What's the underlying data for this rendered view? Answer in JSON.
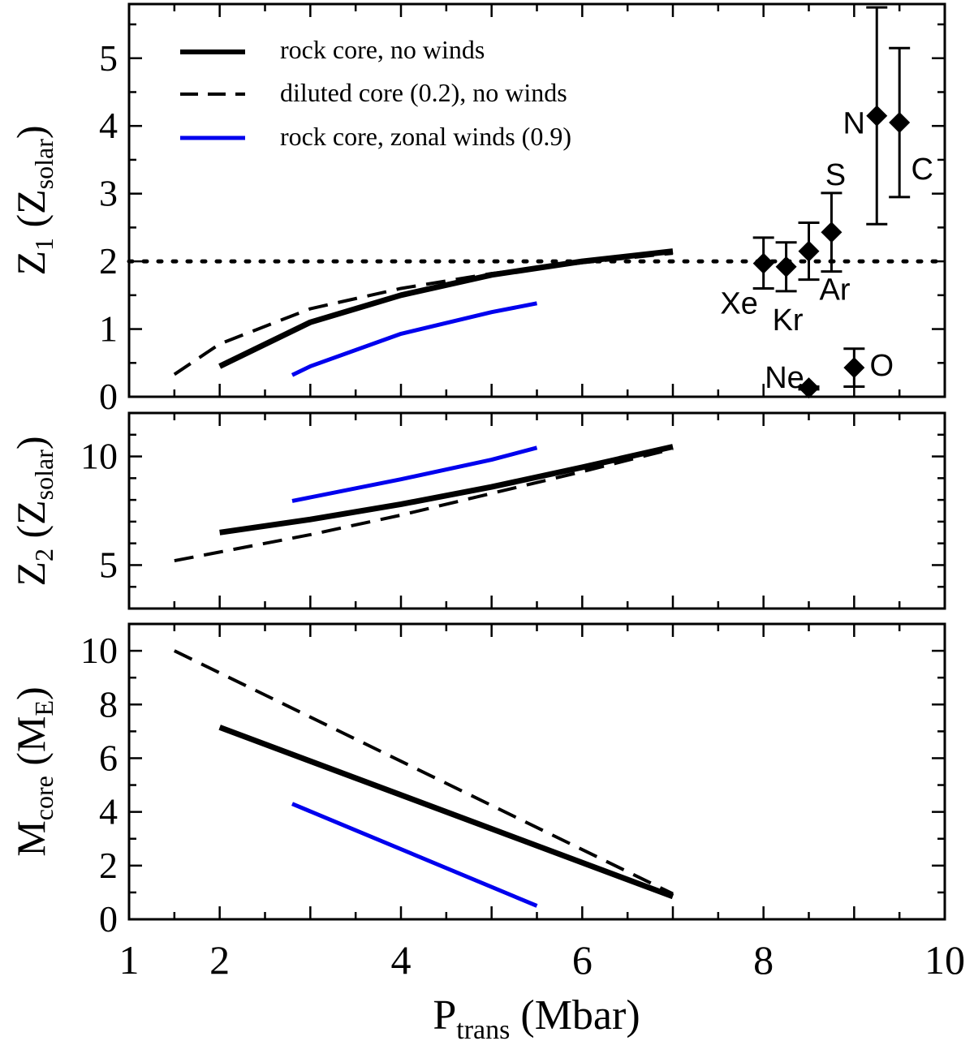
{
  "chart_data": [
    {
      "type": "line",
      "panel": "top",
      "ylabel_main": "Z",
      "ylabel_sub": "1",
      "ylabel_paren": "(Z",
      "ylabel_unit_sub": "solar",
      "ylabel_close": ")",
      "xlim": [
        1,
        10
      ],
      "ylim": [
        0,
        5.8
      ],
      "yticks": [
        "0",
        "1",
        "2",
        "3",
        "4",
        "5"
      ],
      "reference_line": {
        "y": 2,
        "style": "dotted"
      },
      "series": [
        {
          "name": "rock core, no winds",
          "color": "#000000",
          "style": "solid",
          "x": [
            2,
            3,
            4,
            5,
            6,
            7
          ],
          "y": [
            0.45,
            1.1,
            1.5,
            1.8,
            2.0,
            2.15
          ]
        },
        {
          "name": "diluted core (0.2), no winds",
          "color": "#000000",
          "style": "dashed",
          "x": [
            1.5,
            2,
            3,
            4,
            5,
            6,
            7
          ],
          "y": [
            0.33,
            0.78,
            1.3,
            1.6,
            1.82,
            1.98,
            2.12
          ]
        },
        {
          "name": "rock core, zonal winds (0.9)",
          "color": "#0000ee",
          "style": "solid",
          "x": [
            2.8,
            3.0,
            4,
            5,
            5.5
          ],
          "y": [
            0.32,
            0.45,
            0.93,
            1.25,
            1.38
          ]
        }
      ],
      "measurements": [
        {
          "label": "Xe",
          "x": 8.0,
          "y": 1.97,
          "lo": 1.6,
          "hi": 2.35
        },
        {
          "label": "Kr",
          "x": 8.25,
          "y": 1.92,
          "lo": 1.56,
          "hi": 2.28
        },
        {
          "label": "Ar",
          "x": 8.5,
          "y": 2.15,
          "lo": 1.73,
          "hi": 2.57
        },
        {
          "label": "S",
          "x": 8.75,
          "y": 2.43,
          "lo": 1.85,
          "hi": 3.01
        },
        {
          "label": "Ne",
          "x": 8.5,
          "y": 0.13,
          "lo": 0.11,
          "hi": 0.15
        },
        {
          "label": "O",
          "x": 9.0,
          "y": 0.43,
          "lo": 0.15,
          "hi": 0.71
        },
        {
          "label": "N",
          "x": 9.25,
          "y": 4.15,
          "lo": 2.55,
          "hi": 5.75
        },
        {
          "label": "C",
          "x": 9.5,
          "y": 4.05,
          "lo": 2.95,
          "hi": 5.15
        }
      ],
      "legend": {
        "placement": "top-left"
      }
    },
    {
      "type": "line",
      "panel": "middle",
      "ylabel_main": "Z",
      "ylabel_sub": "2",
      "ylabel_paren": "(Z",
      "ylabel_unit_sub": "solar",
      "ylabel_close": ")",
      "xlim": [
        1,
        10
      ],
      "ylim": [
        3,
        12
      ],
      "yticks": [
        "5",
        "10"
      ],
      "series": [
        {
          "name": "rock core, no winds",
          "color": "#000000",
          "style": "solid",
          "x": [
            2,
            3,
            4,
            5,
            6,
            7
          ],
          "y": [
            6.5,
            7.1,
            7.8,
            8.6,
            9.5,
            10.45
          ]
        },
        {
          "name": "diluted core (0.2), no winds",
          "color": "#000000",
          "style": "dashed",
          "x": [
            1.5,
            2,
            3,
            4,
            5,
            6,
            7
          ],
          "y": [
            5.2,
            5.6,
            6.4,
            7.3,
            8.3,
            9.3,
            10.35
          ]
        },
        {
          "name": "rock core, zonal winds (0.9)",
          "color": "#0000ee",
          "style": "solid",
          "x": [
            2.8,
            4,
            5,
            5.5
          ],
          "y": [
            7.95,
            8.95,
            9.85,
            10.4
          ]
        }
      ]
    },
    {
      "type": "line",
      "panel": "bottom",
      "ylabel_main": "M",
      "ylabel_sub": "core",
      "ylabel_paren": "(M",
      "ylabel_unit_sub": "E",
      "ylabel_close": ")",
      "xlabel_main": "P",
      "xlabel_sub": "trans",
      "xlabel_unit": "(Mbar)",
      "xlim": [
        1,
        10
      ],
      "ylim": [
        0,
        11
      ],
      "xticks": [
        "1",
        "2",
        "4",
        "6",
        "8",
        "10"
      ],
      "yticks": [
        "0",
        "2",
        "4",
        "6",
        "8",
        "10"
      ],
      "series": [
        {
          "name": "rock core, no winds",
          "color": "#000000",
          "style": "solid",
          "x": [
            2,
            7
          ],
          "y": [
            7.15,
            0.85
          ]
        },
        {
          "name": "diluted core (0.2), no winds",
          "color": "#000000",
          "style": "dashed",
          "x": [
            1.5,
            7
          ],
          "y": [
            10.0,
            0.95
          ]
        },
        {
          "name": "rock core, zonal winds (0.9)",
          "color": "#0000ee",
          "style": "solid",
          "x": [
            2.8,
            5.5
          ],
          "y": [
            4.3,
            0.5
          ]
        }
      ]
    }
  ]
}
